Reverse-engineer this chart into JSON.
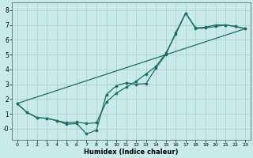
{
  "xlabel": "Humidex (Indice chaleur)",
  "bg_color": "#c8eae8",
  "grid_color": "#b0c8c8",
  "line_color": "#1a6e64",
  "xlim": [
    -0.5,
    23.5
  ],
  "ylim": [
    -0.75,
    8.5
  ],
  "xticks": [
    0,
    1,
    2,
    3,
    4,
    5,
    6,
    7,
    8,
    9,
    10,
    11,
    12,
    13,
    14,
    15,
    16,
    17,
    18,
    19,
    20,
    21,
    22,
    23
  ],
  "yticks": [
    0,
    1,
    2,
    3,
    4,
    5,
    6,
    7,
    8
  ],
  "ytick_labels": [
    "-0",
    "1",
    "2",
    "3",
    "4",
    "5",
    "6",
    "7",
    "8"
  ],
  "line1_x": [
    0,
    1,
    2,
    3,
    4,
    5,
    6,
    7,
    8,
    9,
    10,
    11,
    12,
    13,
    14,
    15,
    16,
    17,
    18,
    19,
    20,
    21,
    22,
    23
  ],
  "line1_y": [
    1.7,
    1.1,
    0.75,
    0.7,
    0.55,
    0.3,
    0.35,
    -0.35,
    -0.1,
    2.3,
    2.9,
    3.1,
    3.0,
    3.05,
    4.1,
    5.0,
    6.5,
    7.8,
    6.75,
    6.8,
    6.9,
    7.0,
    6.9,
    6.75
  ],
  "line2_x": [
    0,
    1,
    2,
    3,
    4,
    5,
    6,
    7,
    8,
    9,
    10,
    11,
    12,
    13,
    14,
    15,
    16,
    17,
    18,
    19,
    20,
    21,
    22,
    23
  ],
  "line2_y": [
    1.7,
    1.1,
    0.75,
    0.7,
    0.55,
    0.4,
    0.45,
    0.35,
    0.4,
    1.8,
    2.4,
    2.8,
    3.2,
    3.7,
    4.2,
    5.1,
    6.4,
    7.8,
    6.8,
    6.85,
    7.0,
    7.0,
    6.9,
    6.75
  ],
  "line3_x": [
    0,
    23
  ],
  "line3_y": [
    1.7,
    6.75
  ]
}
